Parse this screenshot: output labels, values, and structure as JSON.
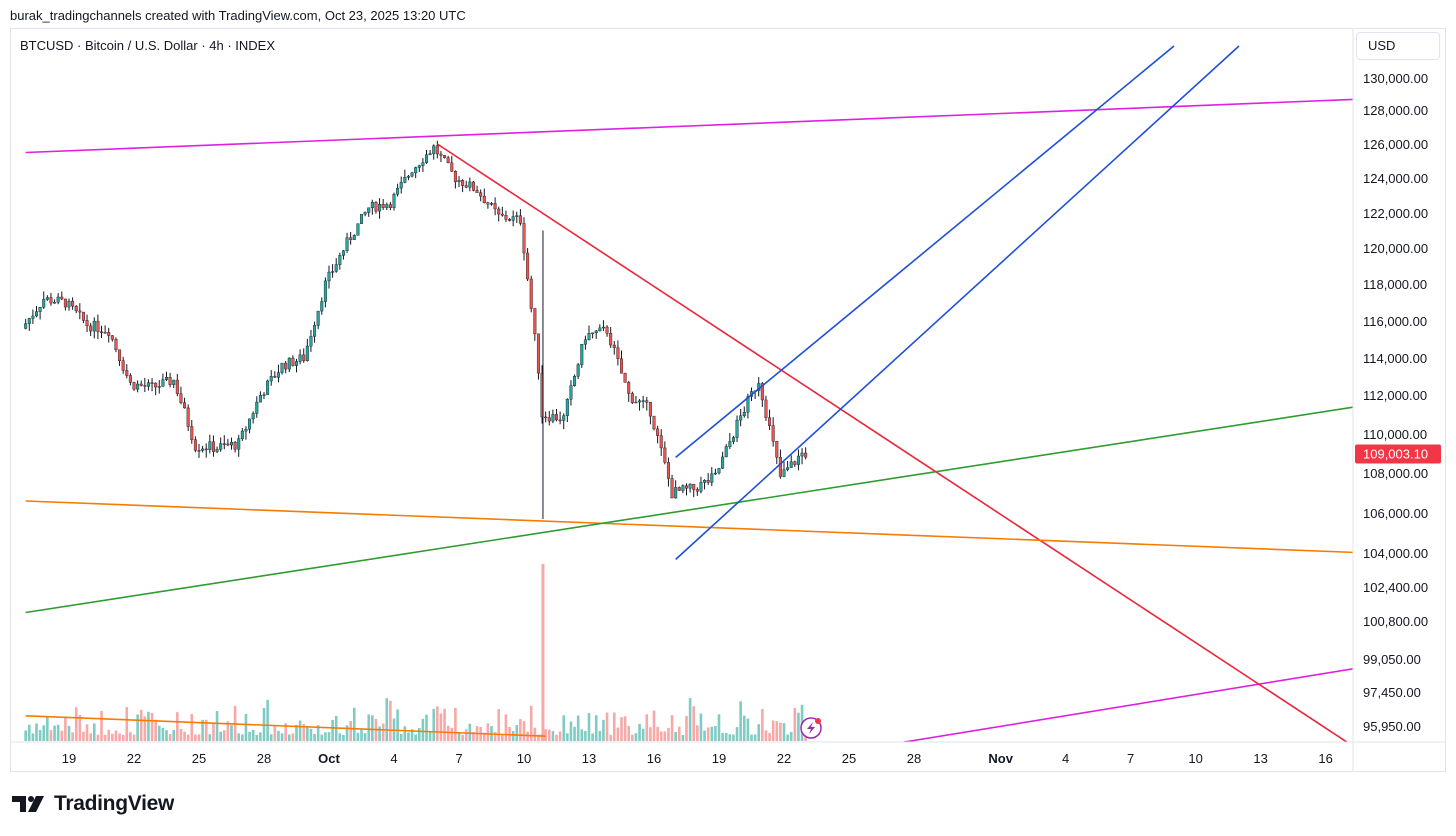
{
  "caption": "burak_tradingchannels created with TradingView.com, Oct 23, 2025 13:20 UTC",
  "symbol_title": "BTCUSD · Bitcoin / U.S. Dollar · 4h · INDEX",
  "currency": "USD",
  "brand": {
    "name": "TradingView",
    "logo_icon": "tradingview-logo-icon"
  },
  "alert_icon": "lightning-alert-icon",
  "chart_data": {
    "type": "candlestick",
    "y_tick_labels": [
      "130,000.00",
      "128,000.00",
      "126,000.00",
      "124,000.00",
      "122,000.00",
      "120,000.00",
      "118,000.00",
      "116,000.00",
      "114,000.00",
      "112,000.00",
      "110,000.00",
      "108,000.00",
      "106,000.00",
      "104,000.00",
      "102,400.00",
      "100,800.00",
      "99,050.00",
      "97,450.00",
      "95,950.00"
    ],
    "x_tick_labels": [
      "19",
      "22",
      "25",
      "28",
      "Oct",
      "4",
      "7",
      "10",
      "13",
      "16",
      "19",
      "22",
      "25",
      "28",
      "Nov",
      "4",
      "7",
      "10",
      "13",
      "16"
    ],
    "x_dates": [
      "2025-09-19",
      "2025-09-22",
      "2025-09-25",
      "2025-09-28",
      "2025-10-01",
      "2025-10-04",
      "2025-10-07",
      "2025-10-10",
      "2025-10-13",
      "2025-10-16",
      "2025-10-19",
      "2025-10-22",
      "2025-10-25",
      "2025-10-28",
      "2025-11-01",
      "2025-11-04",
      "2025-11-07",
      "2025-11-10",
      "2025-11-13",
      "2025-11-16"
    ],
    "bold_x_labels": [
      "Oct",
      "Nov"
    ],
    "last_price": "109,003.10",
    "last_price_value": 109003.1,
    "colors": {
      "up": "#26a69a",
      "down": "#ef5350",
      "vol_up": "#80cbc4",
      "vol_down": "#f7a9a7",
      "price_tag": "#f23645"
    },
    "price_path": [
      [
        "2025-09-17",
        115600
      ],
      [
        "2025-09-18",
        117200
      ],
      [
        "2025-09-19",
        117000
      ],
      [
        "2025-09-20",
        115800
      ],
      [
        "2025-09-21",
        115500
      ],
      [
        "2025-09-22",
        112600
      ],
      [
        "2025-09-23",
        112400
      ],
      [
        "2025-09-24",
        112800
      ],
      [
        "2025-09-25",
        109400
      ],
      [
        "2025-09-26",
        109300
      ],
      [
        "2025-09-27",
        109500
      ],
      [
        "2025-09-28",
        112000
      ],
      [
        "2025-09-29",
        113600
      ],
      [
        "2025-09-30",
        114000
      ],
      [
        "2025-10-01",
        118000
      ],
      [
        "2025-10-02",
        120300
      ],
      [
        "2025-10-03",
        122300
      ],
      [
        "2025-10-04",
        122600
      ],
      [
        "2025-10-05",
        124500
      ],
      [
        "2025-10-06",
        125800
      ],
      [
        "2025-10-07",
        124000
      ],
      [
        "2025-10-08",
        123300
      ],
      [
        "2025-10-09",
        121800
      ],
      [
        "2025-10-10",
        121600
      ],
      [
        "2025-10-10T21:00",
        113000
      ],
      [
        "2025-10-11",
        111000
      ],
      [
        "2025-10-12",
        110800
      ],
      [
        "2025-10-13",
        115200
      ],
      [
        "2025-10-14",
        115500
      ],
      [
        "2025-10-15",
        112000
      ],
      [
        "2025-10-16",
        111200
      ],
      [
        "2025-10-17",
        107000
      ],
      [
        "2025-10-18",
        107200
      ],
      [
        "2025-10-19",
        107800
      ],
      [
        "2025-10-20",
        110500
      ],
      [
        "2025-10-21",
        112800
      ],
      [
        "2025-10-22",
        107800
      ],
      [
        "2025-10-23",
        109000
      ]
    ],
    "trend_lines": [
      {
        "name": "magenta-upper-channel",
        "color": "#e020e0",
        "points": [
          [
            "2025-09-17",
            125500
          ],
          [
            "2025-11-18",
            128700
          ]
        ]
      },
      {
        "name": "magenta-lower-channel",
        "color": "#e020e0",
        "points": [
          [
            "2025-10-26",
            95000
          ],
          [
            "2025-11-18",
            98700
          ]
        ]
      },
      {
        "name": "red-descending",
        "color": "#e8283a",
        "points": [
          [
            "2025-10-06",
            126000
          ],
          [
            "2025-11-18",
            94600
          ]
        ]
      },
      {
        "name": "orange-support",
        "color": "#f57c00",
        "points": [
          [
            "2025-09-17",
            106600
          ],
          [
            "2025-11-18",
            104000
          ]
        ]
      },
      {
        "name": "green-ascending",
        "color": "#2e9c2e",
        "points": [
          [
            "2025-09-17",
            101200
          ],
          [
            "2025-11-18",
            111500
          ]
        ]
      },
      {
        "name": "blue-channel-upper",
        "color": "#1e4fd8",
        "points": [
          [
            "2025-10-17",
            108800
          ],
          [
            "2025-11-09",
            132000
          ]
        ]
      },
      {
        "name": "blue-channel-lower",
        "color": "#1e4fd8",
        "points": [
          [
            "2025-10-17",
            103700
          ],
          [
            "2025-11-12",
            132000
          ]
        ]
      },
      {
        "name": "orange-volume-trend",
        "color": "#f57c00",
        "points": [
          [
            "2025-09-17",
            96400
          ],
          [
            "2025-10-11",
            95500
          ]
        ]
      }
    ]
  }
}
